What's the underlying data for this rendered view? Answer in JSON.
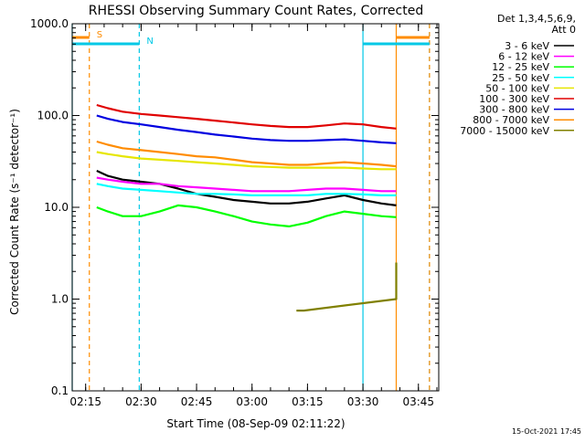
{
  "chart_data": {
    "type": "line",
    "title": "RHESSI Observing Summary Count Rates, Corrected",
    "xlabel": "Start Time (08-Sep-09 02:11:22)",
    "ylabel": "Corrected Count Rate (s⁻¹ detector⁻¹)",
    "yscale": "log",
    "ylim": [
      0.1,
      1000
    ],
    "ytick_labels": [
      "0.1",
      "1.0",
      "10.0",
      "100.0",
      "1000.0"
    ],
    "ytick_values": [
      0.1,
      1,
      10,
      100,
      1000
    ],
    "xlim": [
      "02:11:22",
      "03:50:30"
    ],
    "xtick_labels": [
      "02:15",
      "02:30",
      "02:45",
      "03:00",
      "03:15",
      "03:30",
      "03:45"
    ],
    "xtick_values": [
      "02:15",
      "02:30",
      "02:45",
      "03:00",
      "03:15",
      "03:30",
      "03:45"
    ],
    "legend_header": [
      "Det 1,3,4,5,6,9,",
      "Att 0"
    ],
    "legend_position": "right",
    "footer_date": "15-Oct-2021 17:45",
    "series": [
      {
        "name": "3 - 6 keV",
        "color": "#000000",
        "x": [
          "02:18",
          "02:21",
          "02:25",
          "02:30",
          "02:35",
          "02:40",
          "02:45",
          "02:50",
          "02:55",
          "03:00",
          "03:05",
          "03:10",
          "03:15",
          "03:20",
          "03:25",
          "03:30",
          "03:35",
          "03:39"
        ],
        "y": [
          25,
          22,
          20,
          19,
          18,
          16,
          14,
          13,
          12,
          11.5,
          11,
          11,
          11.5,
          12.5,
          13.5,
          12,
          11,
          10.5
        ]
      },
      {
        "name": "6 - 12 keV",
        "color": "#ff00ff",
        "x": [
          "02:18",
          "02:21",
          "02:25",
          "02:30",
          "02:35",
          "02:40",
          "02:45",
          "02:50",
          "02:55",
          "03:00",
          "03:05",
          "03:10",
          "03:15",
          "03:20",
          "03:25",
          "03:30",
          "03:35",
          "03:39"
        ],
        "y": [
          21,
          20,
          19,
          18,
          18,
          17,
          16.5,
          16,
          15.5,
          15,
          15,
          15,
          15.5,
          16,
          16,
          15.5,
          15,
          15
        ]
      },
      {
        "name": "12 - 25 keV",
        "color": "#00ff00",
        "x": [
          "02:18",
          "02:21",
          "02:25",
          "02:30",
          "02:35",
          "02:40",
          "02:45",
          "02:50",
          "02:55",
          "03:00",
          "03:05",
          "03:10",
          "03:15",
          "03:20",
          "03:25",
          "03:30",
          "03:35",
          "03:39"
        ],
        "y": [
          10,
          9,
          8,
          8,
          9,
          10.5,
          10,
          9,
          8,
          7,
          6.5,
          6.2,
          6.8,
          8,
          9,
          8.5,
          8,
          7.8
        ]
      },
      {
        "name": "25 - 50 keV",
        "color": "#00ffff",
        "x": [
          "02:18",
          "02:21",
          "02:25",
          "02:30",
          "02:35",
          "02:40",
          "02:45",
          "02:50",
          "02:55",
          "03:00",
          "03:05",
          "03:10",
          "03:15",
          "03:20",
          "03:25",
          "03:30",
          "03:35",
          "03:39"
        ],
        "y": [
          18,
          17,
          16,
          15.5,
          15,
          14.5,
          14,
          14,
          13.8,
          13.5,
          13.5,
          13.5,
          13.5,
          14,
          14,
          13.8,
          13.5,
          13.5
        ]
      },
      {
        "name": "50 - 100 keV",
        "color": "#e6e600",
        "x": [
          "02:18",
          "02:21",
          "02:25",
          "02:30",
          "02:35",
          "02:40",
          "02:45",
          "02:50",
          "02:55",
          "03:00",
          "03:05",
          "03:10",
          "03:15",
          "03:20",
          "03:25",
          "03:30",
          "03:35",
          "03:39"
        ],
        "y": [
          40,
          38,
          36,
          34,
          33,
          32,
          31,
          30,
          29,
          28,
          27.5,
          27,
          27,
          27,
          27,
          26.5,
          26,
          26
        ]
      },
      {
        "name": "100 - 300 keV",
        "color": "#e00000",
        "x": [
          "02:18",
          "02:21",
          "02:25",
          "02:30",
          "02:35",
          "02:40",
          "02:45",
          "02:50",
          "02:55",
          "03:00",
          "03:05",
          "03:10",
          "03:15",
          "03:20",
          "03:25",
          "03:30",
          "03:35",
          "03:39"
        ],
        "y": [
          130,
          120,
          110,
          104,
          100,
          96,
          92,
          88,
          84,
          80,
          77,
          75,
          75,
          78,
          82,
          80,
          75,
          72
        ]
      },
      {
        "name": "300 - 800 keV",
        "color": "#0000e0",
        "x": [
          "02:18",
          "02:21",
          "02:25",
          "02:30",
          "02:35",
          "02:40",
          "02:45",
          "02:50",
          "02:55",
          "03:00",
          "03:05",
          "03:10",
          "03:15",
          "03:20",
          "03:25",
          "03:30",
          "03:35",
          "03:39"
        ],
        "y": [
          100,
          92,
          85,
          80,
          75,
          70,
          66,
          62,
          59,
          56,
          54,
          53,
          53,
          54,
          55,
          53,
          51,
          50
        ]
      },
      {
        "name": "800 - 7000 keV",
        "color": "#ff8c00",
        "x": [
          "02:18",
          "02:21",
          "02:25",
          "02:30",
          "02:35",
          "02:40",
          "02:45",
          "02:50",
          "02:55",
          "03:00",
          "03:05",
          "03:10",
          "03:15",
          "03:20",
          "03:25",
          "03:30",
          "03:35",
          "03:39"
        ],
        "y": [
          52,
          48,
          44,
          42,
          40,
          38,
          36,
          35,
          33,
          31,
          30,
          29,
          29,
          30,
          31,
          30,
          29,
          28
        ]
      },
      {
        "name": "7000 - 15000 keV",
        "color": "#808000",
        "x": [
          "03:12",
          "03:14",
          "03:39",
          "03:39"
        ],
        "y": [
          0.75,
          0.75,
          1.0,
          2.5
        ]
      }
    ],
    "shaded_markers": [
      {
        "label": "S",
        "color": "#ff8c00",
        "x_start": "02:11:22",
        "x_end": "02:16"
      },
      {
        "label": "N",
        "color": "#00c8e6",
        "x_start": "02:11:22",
        "x_end": "02:29:30"
      },
      {
        "label": "",
        "color": "#00c8e6",
        "x_start": "03:30",
        "x_end": "03:48"
      },
      {
        "label": "",
        "color": "#ff8c00",
        "x_start": "03:39",
        "x_end": "03:48"
      }
    ],
    "vertical_lines": [
      {
        "x": "02:11:22",
        "color": "#00c8e6",
        "style": "solid"
      },
      {
        "x": "02:16",
        "color": "#ff8c00",
        "style": "dashed"
      },
      {
        "x": "02:29:30",
        "color": "#00c8e6",
        "style": "dashed"
      },
      {
        "x": "03:30",
        "color": "#00c8e6",
        "style": "solid"
      },
      {
        "x": "03:39",
        "color": "#ff8c00",
        "style": "solid"
      },
      {
        "x": "03:48",
        "color": "#00c8e6",
        "style": "dashed"
      },
      {
        "x": "03:48",
        "color": "#ff8c00",
        "style": "dashed"
      }
    ]
  }
}
